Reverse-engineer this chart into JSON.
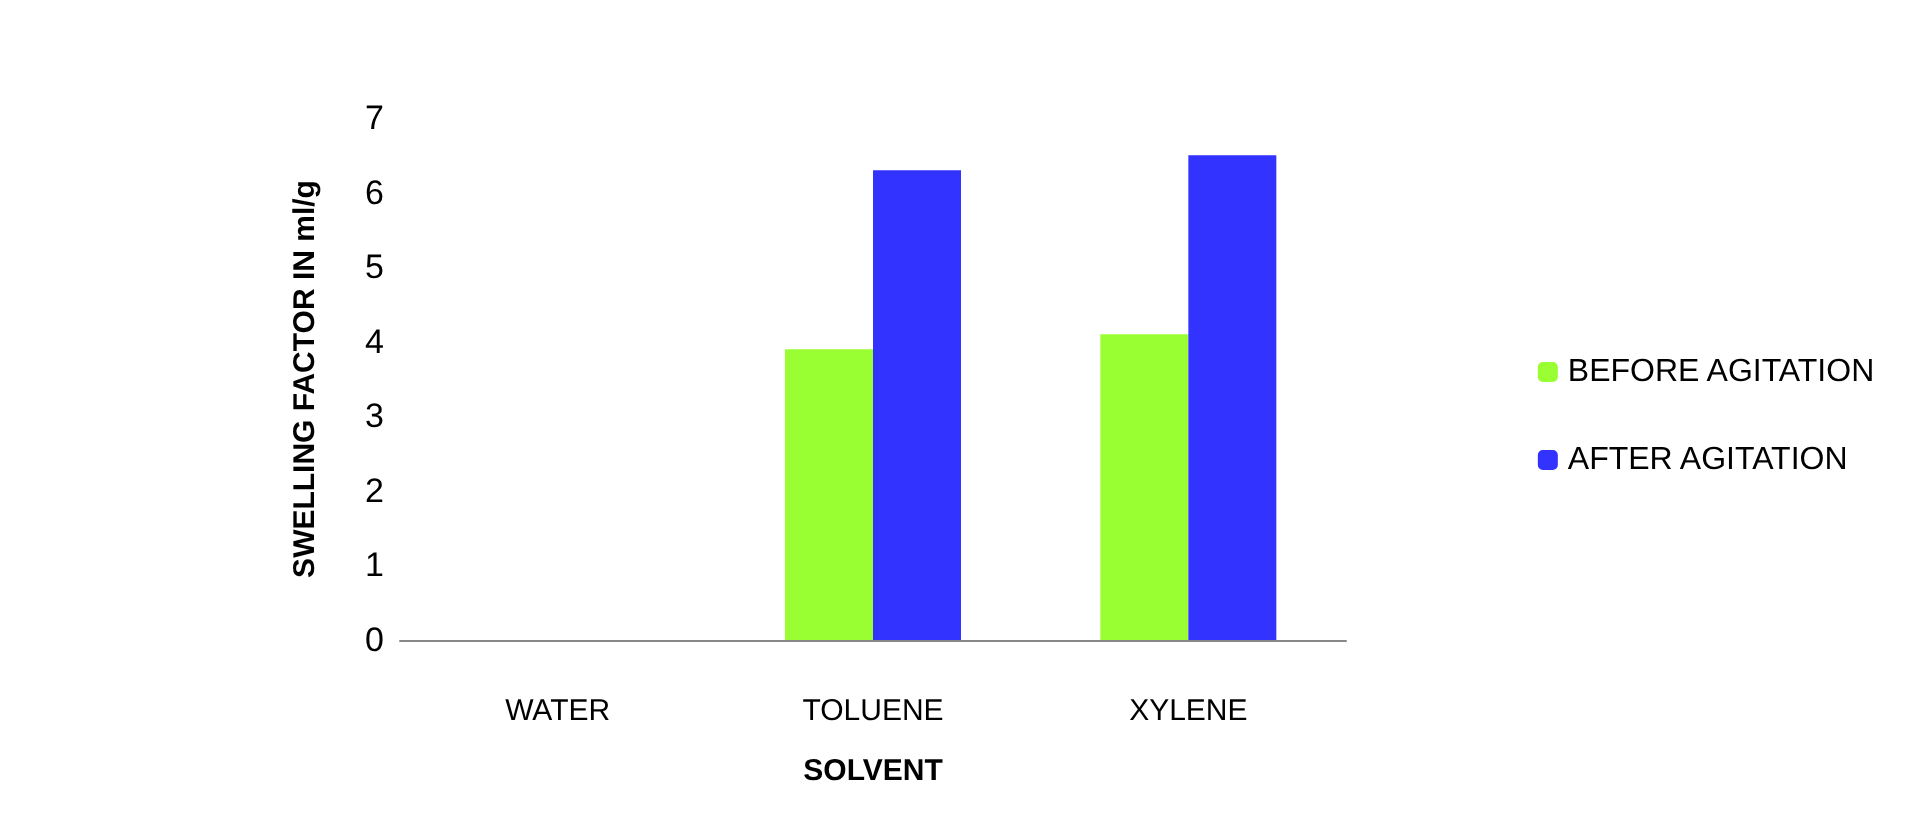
{
  "chart_data": {
    "type": "bar",
    "xlabel": "SOLVENT",
    "ylabel": "SWELLING FACTOR IN ml/g",
    "categories": [
      "WATER",
      "TOLUENE",
      "XYLENE"
    ],
    "series": [
      {
        "name": "BEFORE AGITATION",
        "color": "#99ff33",
        "values": [
          0,
          3.9,
          4.1
        ]
      },
      {
        "name": "AFTER AGITATION",
        "color": "#3333ff",
        "values": [
          0,
          6.3,
          6.5
        ]
      }
    ],
    "ylim": [
      0,
      7
    ],
    "yticks": [
      0,
      1,
      2,
      3,
      4,
      5,
      6,
      7
    ],
    "grid": false,
    "legend": "right"
  }
}
